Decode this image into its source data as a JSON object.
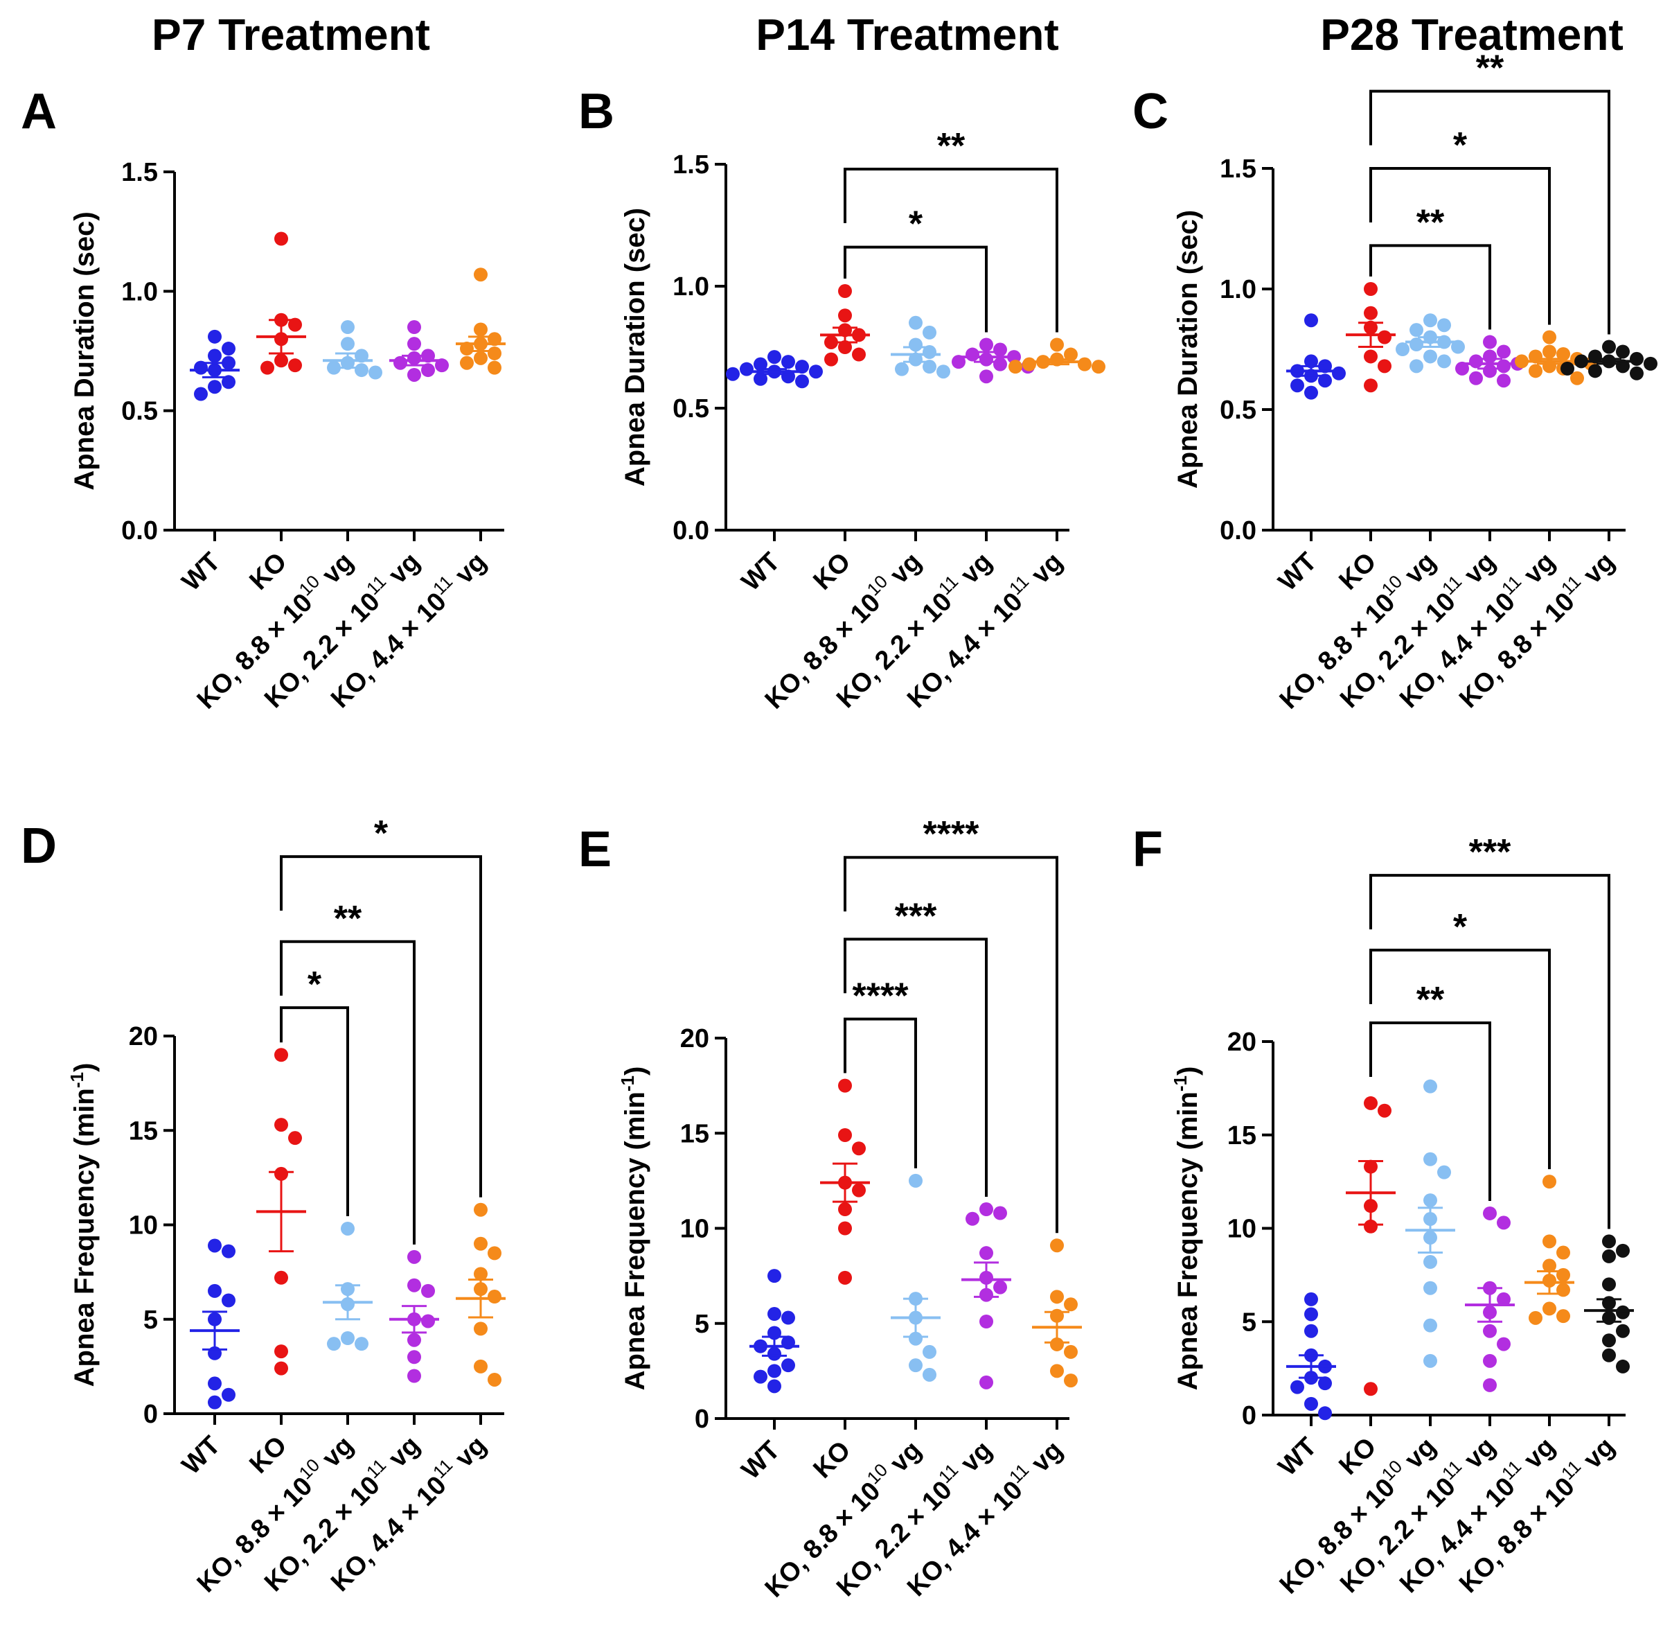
{
  "column_titles": [
    "P7 Treatment",
    "P14 Treatment",
    "P28 Treatment"
  ],
  "colors": {
    "WT": "#2323e6",
    "KO": "#e81414",
    "KO_8.8e10": "#88bff2",
    "KO_2.2e11": "#b22ee0",
    "KO_4.4e11": "#f58a1a",
    "KO_8.8e11": "#111111"
  },
  "chart_data": [
    {
      "panel": "A",
      "type": "scatter",
      "ylabel": "Apnea Duration (sec)",
      "ylim": [
        0,
        1.5
      ],
      "yticks": [
        "0.0",
        "0.5",
        "1.0",
        "1.5"
      ],
      "groups": [
        {
          "key": "WT",
          "label": "WT",
          "mean": 0.67,
          "sem": 0.03,
          "values": [
            0.81,
            0.76,
            0.73,
            0.7,
            0.68,
            0.67,
            0.62,
            0.6,
            0.57
          ]
        },
        {
          "key": "KO",
          "label": "KO",
          "mean": 0.81,
          "sem": 0.07,
          "values": [
            1.22,
            0.88,
            0.86,
            0.8,
            0.71,
            0.69,
            0.68
          ]
        },
        {
          "key": "KO_8.8e10",
          "label": "KO, 8.8 × 10",
          "exp": "10",
          "suffix": "vg",
          "mean": 0.71,
          "sem": 0.03,
          "values": [
            0.85,
            0.78,
            0.73,
            0.7,
            0.68,
            0.67,
            0.66
          ]
        },
        {
          "key": "KO_2.2e11",
          "label": "KO, 2.2 × 10",
          "exp": "11",
          "suffix": "vg",
          "mean": 0.71,
          "sem": 0.02,
          "values": [
            0.85,
            0.78,
            0.73,
            0.72,
            0.7,
            0.69,
            0.67,
            0.65
          ]
        },
        {
          "key": "KO_4.4e11",
          "label": "KO, 4.4 × 10",
          "exp": "11",
          "suffix": "vg",
          "mean": 0.78,
          "sem": 0.03,
          "values": [
            1.07,
            0.84,
            0.8,
            0.78,
            0.76,
            0.74,
            0.72,
            0.7,
            0.68
          ]
        }
      ],
      "brackets": []
    },
    {
      "panel": "B",
      "type": "scatter",
      "ylabel": "Apnea Duration (sec)",
      "ylim": [
        0,
        1.5
      ],
      "yticks": [
        "0.0",
        "0.5",
        "1.0",
        "1.5"
      ],
      "groups": [
        {
          "key": "WT",
          "label": "WT",
          "mean": 0.65,
          "sem": 0.01,
          "values": [
            0.71,
            0.69,
            0.68,
            0.67,
            0.66,
            0.65,
            0.65,
            0.64,
            0.63,
            0.62,
            0.61
          ]
        },
        {
          "key": "KO",
          "label": "KO",
          "mean": 0.8,
          "sem": 0.03,
          "values": [
            0.98,
            0.88,
            0.82,
            0.8,
            0.77,
            0.75,
            0.72,
            0.7
          ]
        },
        {
          "key": "KO_8.8e10",
          "label": "KO, 8.8 × 10",
          "exp": "10",
          "suffix": "vg",
          "mean": 0.72,
          "sem": 0.03,
          "values": [
            0.85,
            0.81,
            0.76,
            0.73,
            0.7,
            0.67,
            0.66,
            0.65
          ]
        },
        {
          "key": "KO_2.2e11",
          "label": "KO, 2.2 × 10",
          "exp": "11",
          "suffix": "vg",
          "mean": 0.71,
          "sem": 0.02,
          "values": [
            0.76,
            0.74,
            0.72,
            0.71,
            0.7,
            0.69,
            0.68,
            0.67,
            0.63
          ]
        },
        {
          "key": "KO_4.4e11",
          "label": "KO, 4.4 × 10",
          "exp": "11",
          "suffix": "vg",
          "mean": 0.69,
          "sem": 0.01,
          "values": [
            0.76,
            0.72,
            0.7,
            0.69,
            0.68,
            0.68,
            0.67,
            0.67
          ]
        }
      ],
      "brackets": [
        {
          "from": 1,
          "to": 3,
          "label": "*",
          "y": 1.16
        },
        {
          "from": 1,
          "to": 4,
          "label": "**",
          "y": 1.48
        }
      ]
    },
    {
      "panel": "C",
      "type": "scatter",
      "ylabel": "Apnea Duration (sec)",
      "ylim": [
        0,
        1.5
      ],
      "yticks": [
        "0.0",
        "0.5",
        "1.0",
        "1.5"
      ],
      "groups": [
        {
          "key": "WT",
          "label": "WT",
          "mean": 0.66,
          "sem": 0.02,
          "values": [
            0.87,
            0.7,
            0.68,
            0.66,
            0.65,
            0.64,
            0.62,
            0.6,
            0.57
          ]
        },
        {
          "key": "KO",
          "label": "KO",
          "mean": 0.81,
          "sem": 0.05,
          "values": [
            1.0,
            0.9,
            0.84,
            0.8,
            0.72,
            0.68,
            0.6
          ]
        },
        {
          "key": "KO_8.8e10",
          "label": "KO, 8.8 × 10",
          "exp": "10",
          "suffix": "vg",
          "mean": 0.78,
          "sem": 0.02,
          "values": [
            0.87,
            0.85,
            0.83,
            0.8,
            0.78,
            0.77,
            0.76,
            0.75,
            0.72,
            0.7,
            0.68
          ]
        },
        {
          "key": "KO_2.2e11",
          "label": "KO, 2.2 × 10",
          "exp": "11",
          "suffix": "vg",
          "mean": 0.69,
          "sem": 0.02,
          "values": [
            0.78,
            0.74,
            0.72,
            0.7,
            0.69,
            0.68,
            0.67,
            0.66,
            0.63,
            0.62
          ]
        },
        {
          "key": "KO_4.4e11",
          "label": "KO, 4.4 × 10",
          "exp": "11",
          "suffix": "vg",
          "mean": 0.7,
          "sem": 0.01,
          "values": [
            0.8,
            0.74,
            0.73,
            0.72,
            0.71,
            0.7,
            0.69,
            0.68,
            0.67,
            0.66,
            0.63
          ]
        },
        {
          "key": "KO_8.8e11",
          "label": "KO, 8.8 × 10",
          "exp": "11",
          "suffix": "vg",
          "mean": 0.7,
          "sem": 0.01,
          "values": [
            0.76,
            0.74,
            0.72,
            0.71,
            0.7,
            0.7,
            0.69,
            0.68,
            0.67,
            0.66,
            0.65
          ]
        }
      ],
      "brackets": [
        {
          "from": 1,
          "to": 3,
          "label": "**",
          "y": 1.18
        },
        {
          "from": 1,
          "to": 4,
          "label": "*",
          "y": 1.5
        },
        {
          "from": 1,
          "to": 5,
          "label": "**",
          "y": 1.82
        }
      ]
    },
    {
      "panel": "D",
      "type": "scatter",
      "ylabel": "Apnea Frequency (min",
      "ylabel_sup": "-1",
      "ylabel_end": ")",
      "ylim": [
        0,
        20
      ],
      "yticks": [
        "0",
        "5",
        "10",
        "15",
        "20"
      ],
      "groups": [
        {
          "key": "WT",
          "label": "WT",
          "mean": 4.4,
          "sem": 1.0,
          "values": [
            8.9,
            8.6,
            6.5,
            6.0,
            5.0,
            3.2,
            1.6,
            1.0,
            0.6
          ]
        },
        {
          "key": "KO",
          "label": "KO",
          "mean": 10.7,
          "sem": 2.1,
          "values": [
            19.0,
            15.3,
            14.6,
            12.7,
            7.2,
            3.3,
            2.4
          ]
        },
        {
          "key": "KO_8.8e10",
          "label": "KO, 8.8 × 10",
          "exp": "10",
          "suffix": "vg",
          "mean": 5.9,
          "sem": 0.9,
          "values": [
            9.8,
            6.6,
            5.8,
            4.0,
            3.7,
            3.7
          ]
        },
        {
          "key": "KO_2.2e11",
          "label": "KO, 2.2 × 10",
          "exp": "11",
          "suffix": "vg",
          "mean": 5.0,
          "sem": 0.7,
          "values": [
            8.3,
            6.8,
            6.5,
            5.0,
            4.9,
            3.9,
            3.0,
            2.0
          ]
        },
        {
          "key": "KO_4.4e11",
          "label": "KO, 4.4 × 10",
          "exp": "11",
          "suffix": "vg",
          "mean": 6.1,
          "sem": 1.0,
          "values": [
            10.8,
            9.0,
            8.5,
            7.4,
            6.6,
            6.2,
            4.5,
            2.5,
            1.8
          ]
        }
      ],
      "brackets": [
        {
          "from": 1,
          "to": 2,
          "label": "*",
          "y": 21.5
        },
        {
          "from": 1,
          "to": 3,
          "label": "**",
          "y": 25.0
        },
        {
          "from": 1,
          "to": 4,
          "label": "*",
          "y": 29.5
        }
      ]
    },
    {
      "panel": "E",
      "type": "scatter",
      "ylabel": "Apnea Frequency (min",
      "ylabel_sup": "-1",
      "ylabel_end": ")",
      "ylim": [
        0,
        20
      ],
      "yticks": [
        "0",
        "5",
        "10",
        "15",
        "20"
      ],
      "groups": [
        {
          "key": "WT",
          "label": "WT",
          "mean": 3.8,
          "sem": 0.5,
          "values": [
            7.5,
            5.5,
            5.3,
            4.5,
            4.0,
            3.8,
            3.4,
            2.8,
            2.5,
            2.2,
            1.7
          ]
        },
        {
          "key": "KO",
          "label": "KO",
          "mean": 12.4,
          "sem": 1.0,
          "values": [
            17.5,
            14.9,
            14.2,
            12.4,
            12.0,
            11.0,
            10.0,
            7.4
          ]
        },
        {
          "key": "KO_8.8e10",
          "label": "KO, 8.8 × 10",
          "exp": "10",
          "suffix": "vg",
          "mean": 5.3,
          "sem": 1.0,
          "values": [
            12.5,
            6.3,
            5.3,
            4.2,
            3.5,
            2.8,
            2.3
          ]
        },
        {
          "key": "KO_2.2e11",
          "label": "KO, 2.2 × 10",
          "exp": "11",
          "suffix": "vg",
          "mean": 7.3,
          "sem": 0.9,
          "values": [
            11.0,
            10.8,
            10.5,
            8.7,
            7.4,
            6.9,
            6.5,
            5.1,
            1.9
          ]
        },
        {
          "key": "KO_4.4e11",
          "label": "KO, 4.4 × 10",
          "exp": "11",
          "suffix": "vg",
          "mean": 4.8,
          "sem": 0.8,
          "values": [
            9.1,
            6.4,
            6.0,
            5.4,
            3.9,
            3.5,
            2.5,
            2.0
          ]
        }
      ],
      "brackets": [
        {
          "from": 1,
          "to": 2,
          "label": "****",
          "y": 21.0
        },
        {
          "from": 1,
          "to": 3,
          "label": "***",
          "y": 25.2
        },
        {
          "from": 1,
          "to": 4,
          "label": "****",
          "y": 29.5
        }
      ]
    },
    {
      "panel": "F",
      "type": "scatter",
      "ylabel": "Apnea Frequency (min",
      "ylabel_sup": "-1",
      "ylabel_end": ")",
      "ylim": [
        0,
        20
      ],
      "yticks": [
        "0",
        "5",
        "10",
        "15",
        "20"
      ],
      "groups": [
        {
          "key": "WT",
          "label": "WT",
          "mean": 2.6,
          "sem": 0.6,
          "values": [
            6.2,
            5.4,
            4.5,
            3.2,
            2.6,
            2.0,
            1.7,
            1.5,
            0.6,
            0.1
          ]
        },
        {
          "key": "KO",
          "label": "KO",
          "mean": 11.9,
          "sem": 1.7,
          "values": [
            16.7,
            16.3,
            13.3,
            11.2,
            10.1,
            1.4
          ]
        },
        {
          "key": "KO_8.8e10",
          "label": "KO, 8.8 × 10",
          "exp": "10",
          "suffix": "vg",
          "mean": 9.9,
          "sem": 1.2,
          "values": [
            17.6,
            13.7,
            13.0,
            11.5,
            10.5,
            9.5,
            8.2,
            6.8,
            4.8,
            2.9
          ]
        },
        {
          "key": "KO_2.2e11",
          "label": "KO, 2.2 × 10",
          "exp": "11",
          "suffix": "vg",
          "mean": 5.9,
          "sem": 0.9,
          "values": [
            10.8,
            10.3,
            6.8,
            6.2,
            5.5,
            4.5,
            3.8,
            2.9,
            1.6
          ]
        },
        {
          "key": "KO_4.4e11",
          "label": "KO, 4.4 × 10",
          "exp": "11",
          "suffix": "vg",
          "mean": 7.1,
          "sem": 0.6,
          "values": [
            12.5,
            9.3,
            8.7,
            8.0,
            7.5,
            7.2,
            6.7,
            5.7,
            5.3,
            5.2
          ]
        },
        {
          "key": "KO_8.8e11",
          "label": "KO, 8.8 × 10",
          "exp": "11",
          "suffix": "vg",
          "mean": 5.6,
          "sem": 0.6,
          "values": [
            9.3,
            8.8,
            8.5,
            7.0,
            6.0,
            5.5,
            5.2,
            4.5,
            4.0,
            3.2,
            2.6
          ]
        }
      ],
      "brackets": [
        {
          "from": 1,
          "to": 3,
          "label": "**",
          "y": 21.0
        },
        {
          "from": 1,
          "to": 4,
          "label": "*",
          "y": 24.9
        },
        {
          "from": 1,
          "to": 5,
          "label": "***",
          "y": 28.9
        }
      ]
    }
  ]
}
